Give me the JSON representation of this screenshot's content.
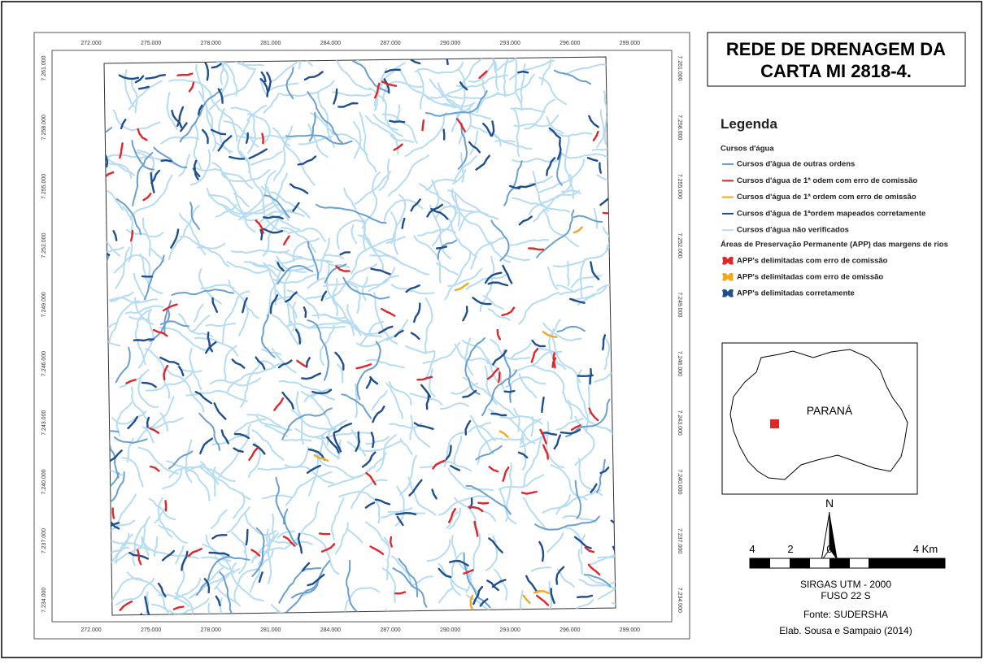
{
  "title": {
    "lines": [
      "REDE DE DRENAGEM DA",
      "CARTA MI 2818-4."
    ]
  },
  "map": {
    "x_labels": [
      "272.000",
      "275.000",
      "278.000",
      "281.000",
      "284.000",
      "287.000",
      "290.000",
      "293.000",
      "296.000",
      "299.000"
    ],
    "y_labels": [
      "7.261.000",
      "7.258.000",
      "7.255.000",
      "7.252.000",
      "7.249.000",
      "7.246.000",
      "7.243.000",
      "7.240.000",
      "7.237.000",
      "7.234.000"
    ]
  },
  "legend": {
    "title": "Legenda",
    "streams_heading": "Cursos d'água",
    "streams": [
      "Cursos d'água de outras ordens",
      "Cursos d'água de 1ª odem com erro de comissão",
      "Cursos d'água de 1ª ordem com erro de omissão",
      "Cursos d'água de 1ªordem mapeados corretamente",
      "Cursos d'água não verificados"
    ],
    "app_heading": "Áreas de Preservação Permanente (APP) das margens de rios",
    "app": [
      "APP's delimitadas com erro de comissão",
      "APP's delimitadas com erro de omissão",
      "APP's delimitadas corretamente"
    ]
  },
  "inset": {
    "label": "PARANÁ"
  },
  "north": "N",
  "scale": {
    "labels": [
      "4",
      "2",
      "0",
      "4 Km"
    ]
  },
  "credits": [
    "SIRGAS UTM - 2000",
    "FUSO 22 S",
    "Fonte: SUDERSHA",
    "Elab. Sousa e Sampaio (2014)"
  ]
}
